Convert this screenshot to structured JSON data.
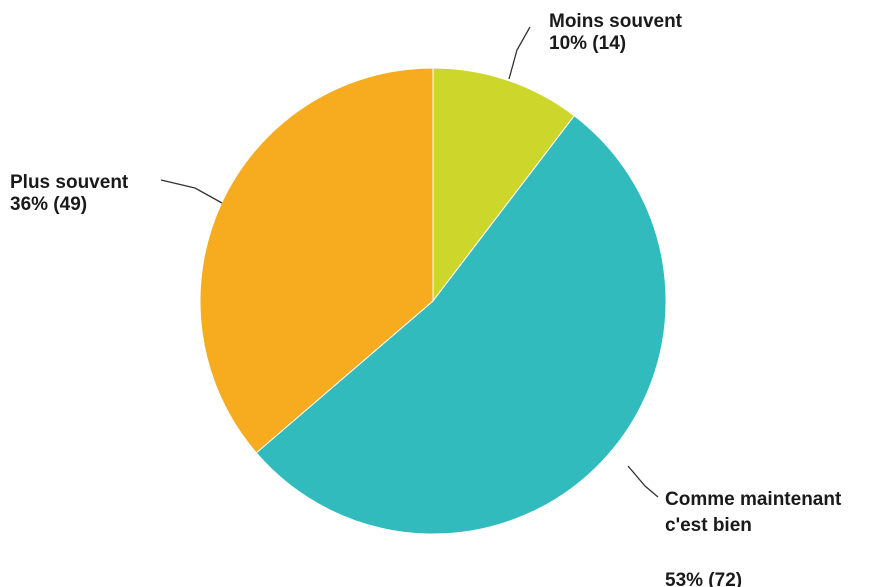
{
  "chart_data": {
    "type": "pie",
    "slices": [
      {
        "name_lines": [
          "Moins souvent"
        ],
        "value_text": "10% (14)",
        "value": 14,
        "color": "#cdd62b"
      },
      {
        "name_lines": [
          "Comme maintenant",
          "c'est bien"
        ],
        "value_text": "53% (72)",
        "value": 72,
        "color": "#31bbbd"
      },
      {
        "name_lines": [
          "Plus souvent"
        ],
        "value_text": "36% (49)",
        "value": 49,
        "color": "#f7ab1f"
      }
    ],
    "start_angle_deg": 0,
    "direction": "clockwise"
  }
}
